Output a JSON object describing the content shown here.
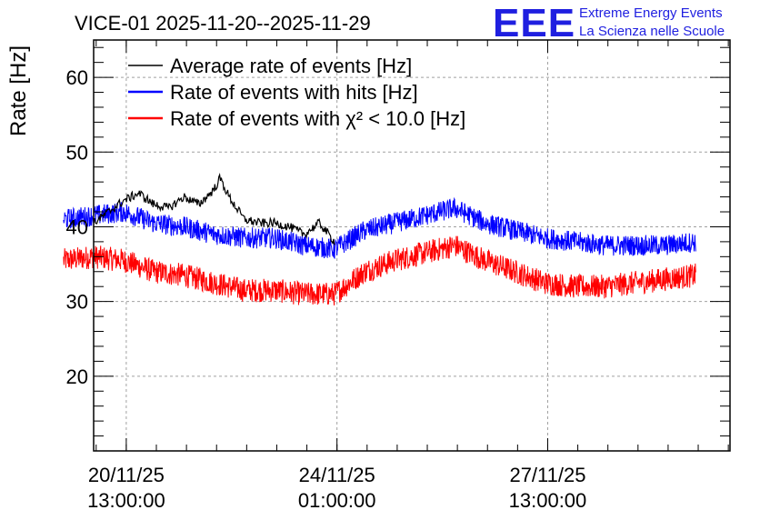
{
  "chart_data": {
    "type": "line",
    "title": "VICE-01 2025-11-20--2025-11-29",
    "logo": {
      "mark": "EEE",
      "line1": "Extreme Energy Events",
      "line2": "La Scienza nelle Scuole",
      "color": "#1f1fe0"
    },
    "ylabel": "Rate [Hz]",
    "ylim": [
      10,
      65
    ],
    "yticks": [
      20,
      30,
      40,
      50,
      60
    ],
    "x_unit": "days since 2025-11-20 00:00",
    "xlim": [
      0.0,
      10.57
    ],
    "xticks": [
      {
        "value": 0.542,
        "date": "20/11/25",
        "time": "13:00:00"
      },
      {
        "value": 4.042,
        "date": "24/11/25",
        "time": "01:00:00"
      },
      {
        "value": 7.542,
        "date": "27/11/25",
        "time": "13:00:00"
      }
    ],
    "grid": true,
    "legend_position": "top-left",
    "series": [
      {
        "name": "Average rate of events [Hz]",
        "color": "#000000",
        "noise": 0.6,
        "x": [
          -0.0,
          0.25,
          0.5,
          0.75,
          1.0,
          1.25,
          1.5,
          1.75,
          2.0,
          2.1,
          2.25,
          2.5,
          2.75,
          3.0,
          3.25,
          3.5,
          3.75,
          4.0
        ],
        "y": [
          40.5,
          42.0,
          43.5,
          44.5,
          43.0,
          42.5,
          44.0,
          43.0,
          45.0,
          46.5,
          44.0,
          41.0,
          40.5,
          40.5,
          40.0,
          39.0,
          40.5,
          38.0
        ]
      },
      {
        "name": "Rate of events with hits [Hz]",
        "color": "#0000ff",
        "noise": 1.4,
        "x": [
          -0.5,
          0.0,
          0.5,
          1.0,
          1.5,
          2.0,
          2.5,
          3.0,
          3.5,
          4.0,
          4.5,
          5.0,
          5.5,
          6.0,
          6.5,
          7.0,
          7.5,
          8.0,
          8.5,
          9.0,
          9.5,
          10.0
        ],
        "y": [
          41.0,
          41.5,
          42.0,
          40.5,
          40.0,
          39.0,
          38.5,
          38.5,
          37.5,
          37.0,
          39.5,
          40.5,
          41.5,
          42.5,
          40.5,
          39.5,
          38.5,
          38.0,
          37.5,
          37.5,
          37.5,
          38.0
        ]
      },
      {
        "name": "Rate of events with χ² < 10.0 [Hz]",
        "color": "#ff0000",
        "noise": 1.6,
        "x": [
          -0.5,
          0.0,
          0.5,
          1.0,
          1.5,
          2.0,
          2.5,
          3.0,
          3.5,
          4.0,
          4.5,
          5.0,
          5.5,
          6.0,
          6.5,
          7.0,
          7.5,
          8.0,
          8.5,
          9.0,
          9.5,
          10.0
        ],
        "y": [
          35.5,
          36.0,
          35.5,
          34.0,
          33.5,
          32.5,
          31.5,
          31.5,
          31.0,
          31.0,
          34.0,
          35.5,
          36.5,
          37.5,
          35.5,
          34.0,
          32.5,
          32.0,
          32.0,
          32.5,
          33.0,
          33.5
        ]
      }
    ]
  }
}
